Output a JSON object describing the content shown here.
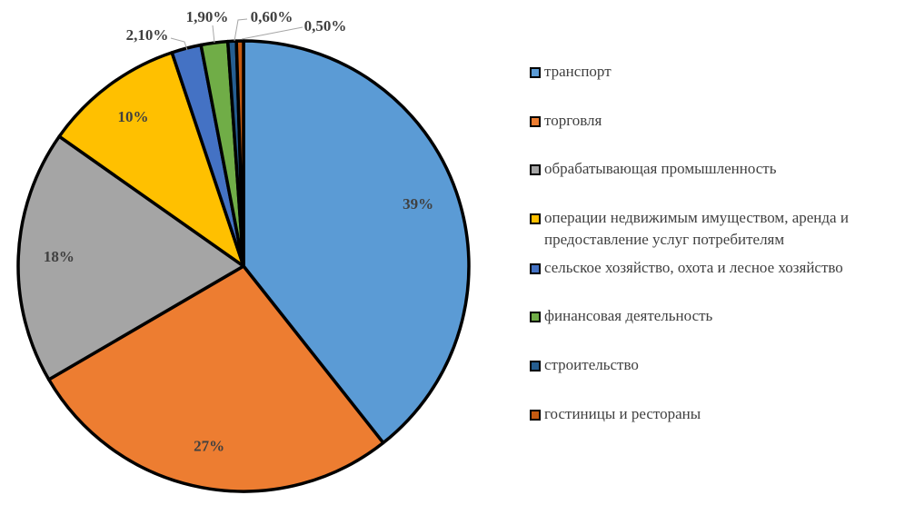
{
  "chart_data": {
    "type": "pie",
    "title": "",
    "slices": [
      {
        "label": "транспорт",
        "value": 39,
        "display": "39%",
        "color": "#5B9BD5"
      },
      {
        "label": "торговля",
        "value": 27,
        "display": "27%",
        "color": "#ED7D31"
      },
      {
        "label": "обрабатывающая промышленность",
        "value": 18,
        "display": "18%",
        "color": "#A5A5A5"
      },
      {
        "label": "операции  недвижимым имуществом, аренда и предоставление услуг потребителям",
        "label_lines": [
          "операции  недвижимым имуществом, аренда и",
          "предоставление услуг потребителям"
        ],
        "value": 10,
        "display": "10%",
        "color": "#FFC000"
      },
      {
        "label": "сельское хозяйство, охота и лесное хозяйство",
        "value": 2.1,
        "display": "2,10%",
        "color": "#4472C4"
      },
      {
        "label": " финансовая деятельность",
        "value": 1.9,
        "display": "1,90%",
        "color": "#70AD47"
      },
      {
        "label": "строительство",
        "value": 0.6,
        "display": "0,60%",
        "color": "#255E91"
      },
      {
        "label": "гостиницы и рестораны",
        "value": 0.5,
        "display": "0,50%",
        "color": "#C55A11"
      }
    ],
    "legend_position": "right"
  }
}
